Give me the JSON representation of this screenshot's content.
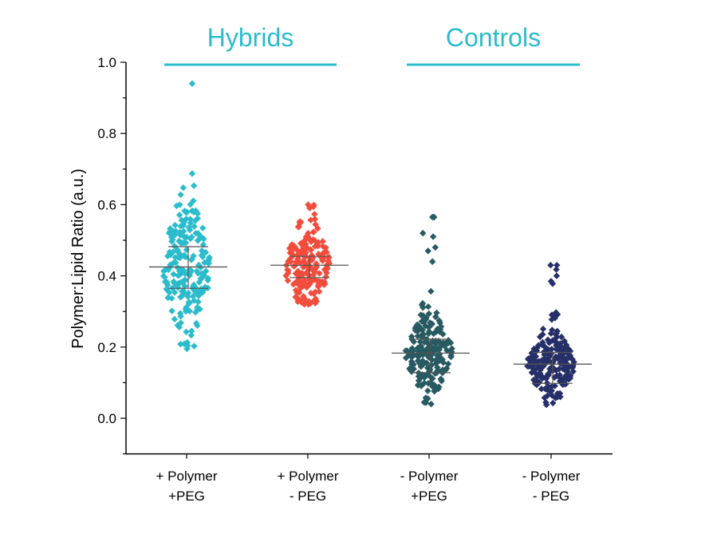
{
  "chart_data": {
    "type": "scatter",
    "title": "",
    "ylabel": "Polymer:Lipid Ratio (a.u.)",
    "ylim": [
      -0.1,
      1.0
    ],
    "yticks": [
      0.0,
      0.2,
      0.4,
      0.6,
      0.8,
      1.0
    ],
    "ytick_labels": [
      "0.0",
      "0.2",
      "0.4",
      "0.6",
      "0.8",
      "1.0"
    ],
    "grid": false,
    "colors": {
      "hybrid_bracket": "#2bbccc",
      "summary_lines": "#555555",
      "axis": "#000000"
    },
    "groups": [
      {
        "label": "Hybrids",
        "categories": [
          0,
          1
        ]
      },
      {
        "label": "Controls",
        "categories": [
          2,
          3
        ]
      }
    ],
    "categories": [
      {
        "line1": "+ Polymer",
        "line2": "+PEG"
      },
      {
        "line1": "+ Polymer",
        "line2": "- PEG"
      },
      {
        "line1": "- Polymer",
        "line2": "+PEG"
      },
      {
        "line1": "- Polymer",
        "line2": "- PEG"
      }
    ],
    "series": [
      {
        "color": "#2bbccc",
        "mean": 0.425,
        "sd_low": 0.365,
        "sd_high": 0.482,
        "min": 0.195,
        "max": 0.94,
        "n": 200,
        "spread": 0.105
      },
      {
        "color": "#f24c3d",
        "mean": 0.43,
        "sd_low": 0.395,
        "sd_high": 0.455,
        "min": 0.32,
        "max": 0.6,
        "n": 190,
        "spread": 0.062
      },
      {
        "color": "#285a62",
        "mean": 0.183,
        "sd_low": 0.128,
        "sd_high": 0.222,
        "min": 0.04,
        "max": 0.565,
        "n": 210,
        "spread": 0.058,
        "outliers": [
          0.565,
          0.52,
          0.51,
          0.48,
          0.47,
          0.44
        ]
      },
      {
        "color": "#272f68",
        "mean": 0.152,
        "sd_low": 0.098,
        "sd_high": 0.185,
        "min": 0.038,
        "max": 0.43,
        "n": 200,
        "spread": 0.052,
        "outliers": [
          0.43,
          0.418,
          0.4,
          0.385,
          0.378
        ]
      }
    ]
  }
}
